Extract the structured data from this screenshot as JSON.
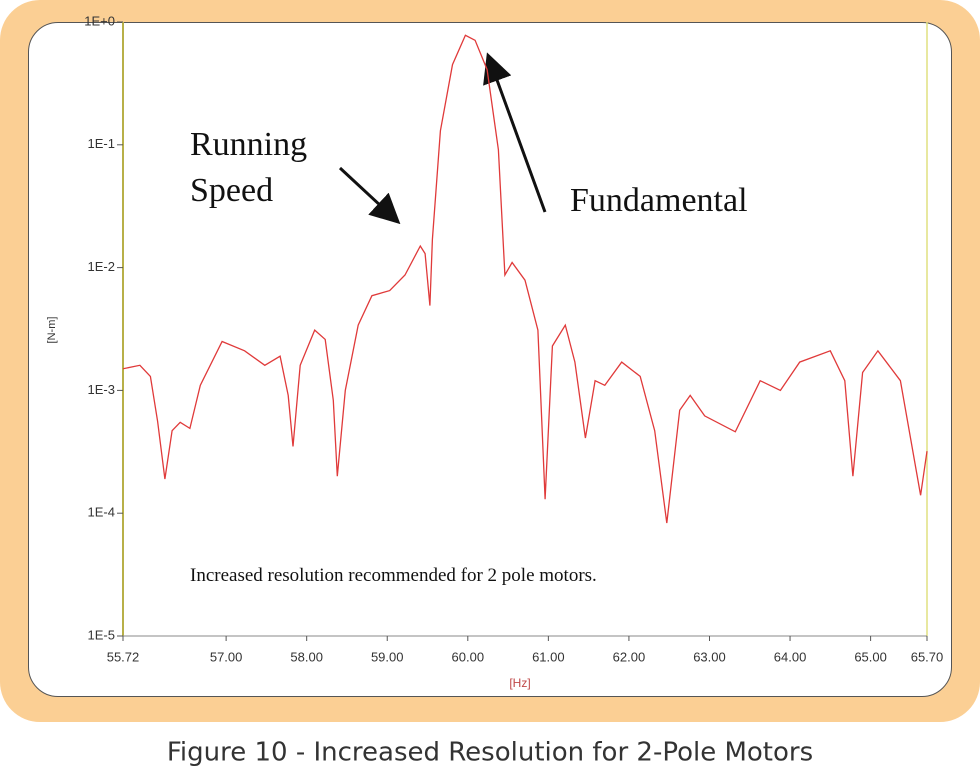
{
  "chart_data": {
    "type": "line",
    "title": "Figure 10 - Increased Resolution for 2-Pole Motors",
    "x_label": "[Hz]",
    "y_label": "[N-m]",
    "annotations": [
      "Running Speed",
      "Fundamental",
      "Increased resolution recommended for 2 pole motors."
    ],
    "yscale": "log",
    "color": "#e03a3a",
    "xlim": [
      55.72,
      65.7
    ],
    "ylim": [
      1e-05,
      1
    ],
    "xticks": [
      55.72,
      {
        "value": 57,
        "label": "57.00"
      },
      {
        "value": 58,
        "label": "58.00"
      },
      {
        "value": 59,
        "label": "59.00"
      },
      {
        "value": 60,
        "label": "60.00"
      },
      {
        "value": 61,
        "label": "61.00"
      },
      {
        "value": 62,
        "label": "62.00"
      },
      {
        "value": 63,
        "label": "63.00"
      },
      {
        "value": 64,
        "label": "64.00"
      },
      {
        "value": 65,
        "label": "65.00"
      },
      {
        "value": 65.7,
        "label": "65.70"
      }
    ],
    "yticks": [
      {
        "value": 1,
        "label": "1E+0"
      },
      {
        "value": 0.1,
        "label": "1E-1"
      },
      {
        "value": 0.01,
        "label": "1E-2"
      },
      {
        "value": 0.001,
        "label": "1E-3"
      },
      {
        "value": 0.0001,
        "label": "1E-4"
      },
      {
        "value": 1e-05,
        "label": "1E-5"
      }
    ],
    "x": [
      55.72,
      55.93,
      56.06,
      56.15,
      56.24,
      56.33,
      56.43,
      56.55,
      56.68,
      56.95,
      57.23,
      57.48,
      57.67,
      57.77,
      57.83,
      57.92,
      58.1,
      58.23,
      58.33,
      58.38,
      58.48,
      58.64,
      58.81,
      59.03,
      59.22,
      59.41,
      59.47,
      59.53,
      59.56,
      59.66,
      59.81,
      59.97,
      60.09,
      60.24,
      60.38,
      60.46,
      60.55,
      60.71,
      60.87,
      60.96,
      61.05,
      61.21,
      61.33,
      61.46,
      61.58,
      61.7,
      61.91,
      62.14,
      62.32,
      62.47,
      62.63,
      62.76,
      62.94,
      63.32,
      63.63,
      63.88,
      64.12,
      64.5,
      64.68,
      64.78,
      64.9,
      65.09,
      65.37,
      65.62,
      65.7
    ],
    "values": [
      0.0015,
      0.0016,
      0.0013,
      0.00056,
      0.00019,
      0.00047,
      0.00055,
      0.00049,
      0.0011,
      0.0025,
      0.0021,
      0.0016,
      0.0019,
      0.00091,
      0.00035,
      0.0016,
      0.0031,
      0.0026,
      0.00083,
      0.0002,
      0.001,
      0.0034,
      0.0059,
      0.0065,
      0.0087,
      0.015,
      0.013,
      0.0049,
      0.017,
      0.13,
      0.45,
      0.78,
      0.71,
      0.41,
      0.091,
      0.0087,
      0.011,
      0.0079,
      0.0031,
      0.00013,
      0.0023,
      0.0034,
      0.0017,
      0.00041,
      0.0012,
      0.0011,
      0.0017,
      0.0013,
      0.00047,
      8.3e-05,
      0.00069,
      0.00091,
      0.00062,
      0.00046,
      0.0012,
      0.001,
      0.0017,
      0.0021,
      0.0012,
      0.0002,
      0.0014,
      0.0021,
      0.0012,
      0.00014,
      0.00032
    ]
  }
}
